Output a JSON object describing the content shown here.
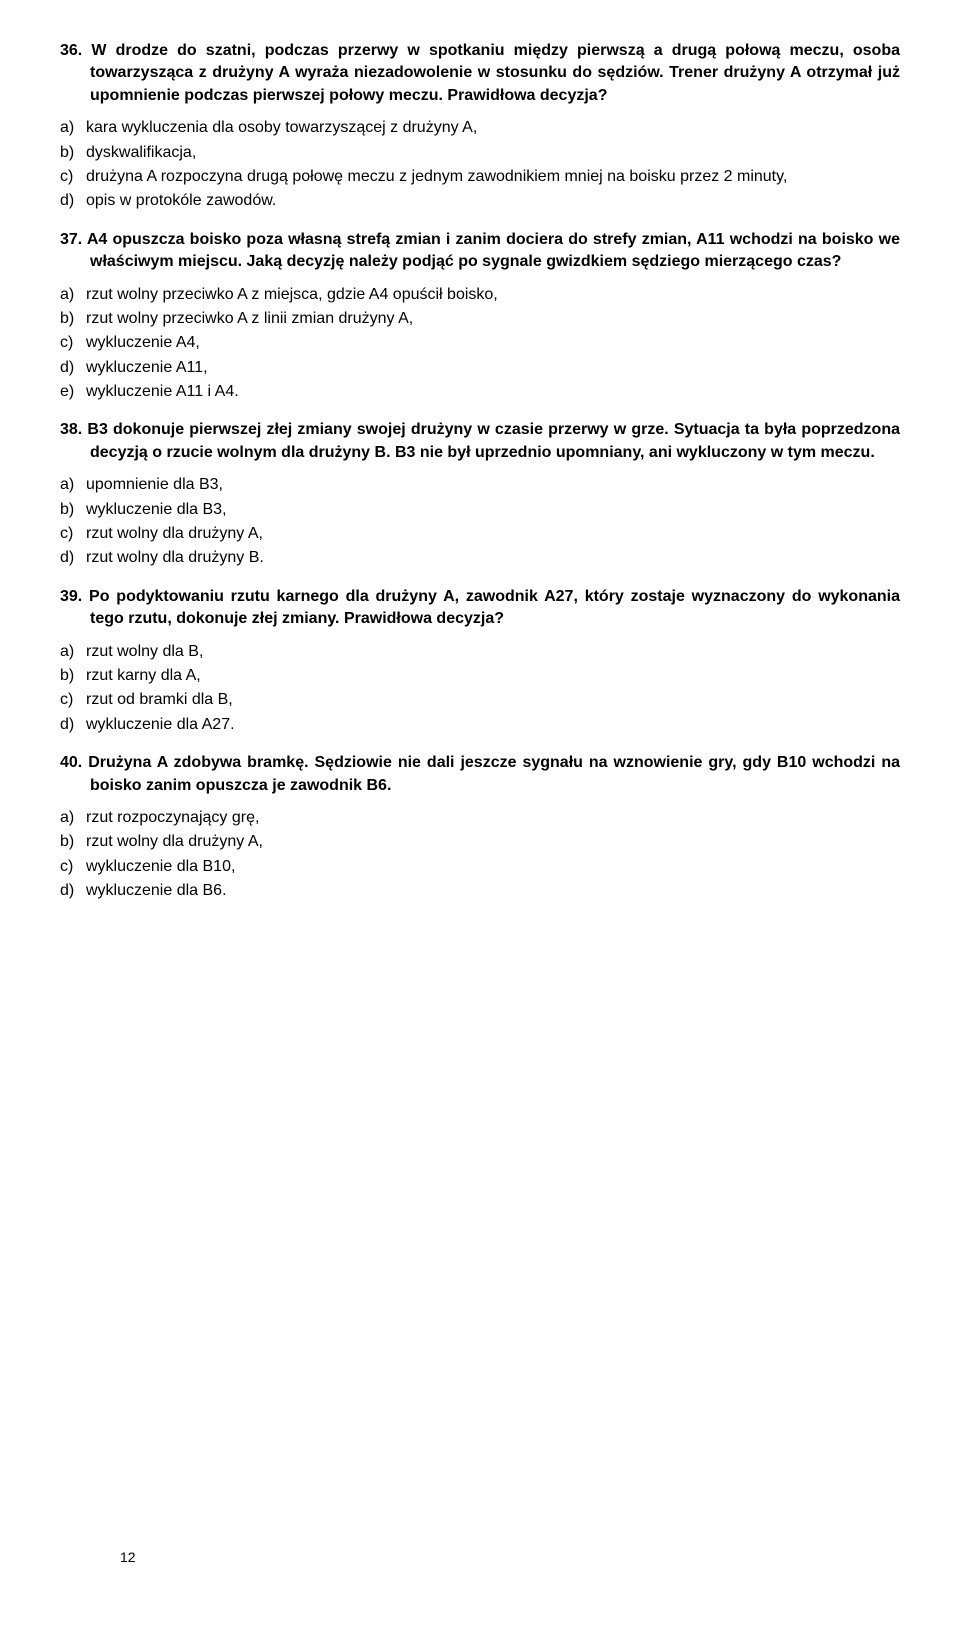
{
  "pageNumber": "12",
  "questions": [
    {
      "number": "36.",
      "text": "W drodze do szatni, podczas przerwy w spotkaniu między pierwszą a drugą połową meczu, osoba towarzysząca z drużyny A wyraża niezadowolenie w stosunku do sędziów. Trener drużyny A otrzymał już upomnienie podczas pierwszej połowy meczu. Prawidłowa decyzja?",
      "answers": [
        {
          "label": "a)",
          "text": "kara wykluczenia dla osoby towarzyszącej z drużyny A,"
        },
        {
          "label": "b)",
          "text": "dyskwalifikacja,"
        },
        {
          "label": "c)",
          "text": "drużyna A rozpoczyna drugą połowę meczu z jednym zawodnikiem mniej na boisku przez 2 minuty,"
        },
        {
          "label": "d)",
          "text": "opis w protokóle zawodów."
        }
      ]
    },
    {
      "number": "37.",
      "text": "A4 opuszcza boisko poza własną strefą zmian i zanim dociera do strefy zmian, A11 wchodzi na boisko we właściwym miejscu. Jaką decyzję należy podjąć po sygnale gwizdkiem sędziego mierzącego czas?",
      "answers": [
        {
          "label": "a)",
          "text": "rzut wolny przeciwko A z miejsca, gdzie A4 opuścił boisko,"
        },
        {
          "label": "b)",
          "text": "rzut wolny przeciwko A z linii zmian drużyny A,"
        },
        {
          "label": "c)",
          "text": "wykluczenie A4,"
        },
        {
          "label": "d)",
          "text": "wykluczenie A11,"
        },
        {
          "label": "e)",
          "text": "wykluczenie A11 i A4."
        }
      ]
    },
    {
      "number": "38.",
      "text": "B3 dokonuje pierwszej złej zmiany swojej drużyny w czasie przerwy w grze. Sytuacja ta była poprzedzona decyzją o rzucie wolnym dla drużyny B. B3 nie był uprzednio upomniany, ani wykluczony w tym meczu.",
      "answers": [
        {
          "label": "a)",
          "text": "upomnienie dla B3,"
        },
        {
          "label": "b)",
          "text": "wykluczenie dla B3,"
        },
        {
          "label": "c)",
          "text": "rzut wolny dla drużyny A,"
        },
        {
          "label": "d)",
          "text": "rzut wolny dla drużyny B."
        }
      ]
    },
    {
      "number": "39.",
      "text": "Po podyktowaniu rzutu karnego dla drużyny A, zawodnik A27, który zostaje wyznaczony do wykonania tego rzutu, dokonuje złej zmiany. Prawidłowa decyzja?",
      "answers": [
        {
          "label": "a)",
          "text": "rzut wolny dla B,"
        },
        {
          "label": "b)",
          "text": "rzut karny dla A,"
        },
        {
          "label": "c)",
          "text": "rzut od bramki dla B,"
        },
        {
          "label": "d)",
          "text": "wykluczenie dla A27."
        }
      ]
    },
    {
      "number": "40.",
      "text": "Drużyna A zdobywa bramkę. Sędziowie nie dali jeszcze sygnału na wznowienie gry, gdy B10 wchodzi na boisko zanim opuszcza je zawodnik B6.",
      "answers": [
        {
          "label": "a)",
          "text": "rzut rozpoczynający grę,"
        },
        {
          "label": "b)",
          "text": "rzut wolny dla drużyny A,"
        },
        {
          "label": "c)",
          "text": "wykluczenie dla B10,"
        },
        {
          "label": "d)",
          "text": "wykluczenie dla B6."
        }
      ]
    }
  ]
}
